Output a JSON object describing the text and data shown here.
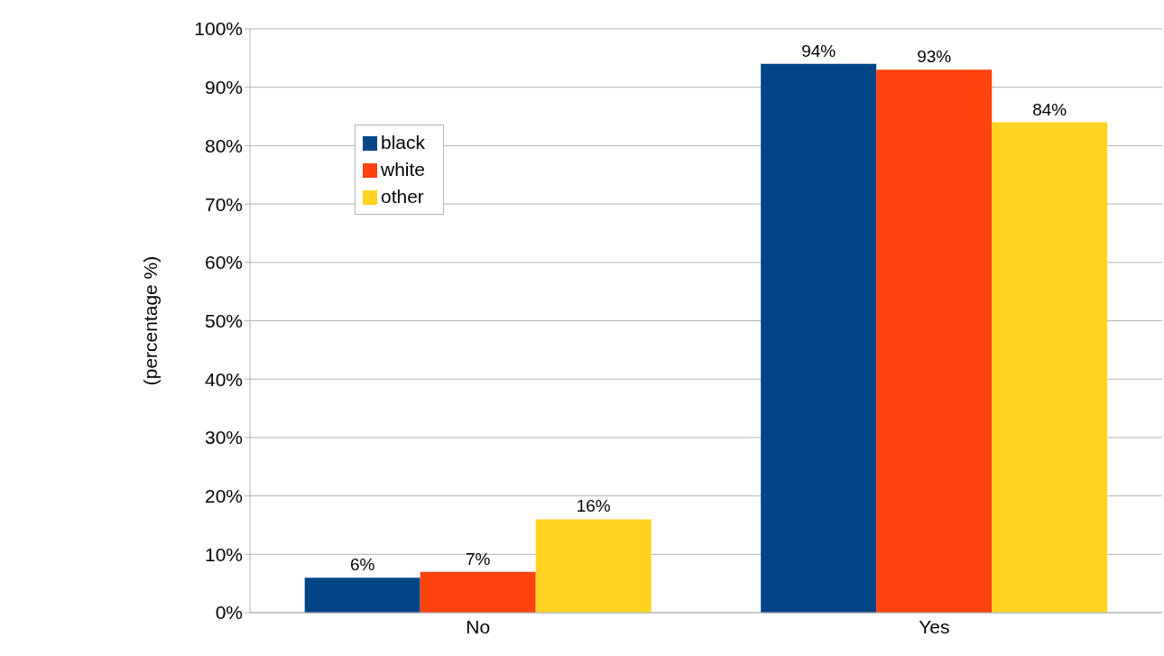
{
  "chart_data": {
    "type": "bar",
    "ylabel": "(percentage %)",
    "categories": [
      "No",
      "Yes"
    ],
    "series": [
      {
        "name": "black",
        "color": "#004586",
        "values": [
          6,
          94
        ],
        "value_labels": [
          "6%",
          "94%"
        ]
      },
      {
        "name": "white",
        "color": "#ff420e",
        "values": [
          7,
          93
        ],
        "value_labels": [
          "7%",
          "93%"
        ]
      },
      {
        "name": "other",
        "color": "#ffd320",
        "values": [
          16,
          84
        ],
        "value_labels": [
          "16%",
          "84%"
        ]
      }
    ],
    "ylim": [
      0,
      100
    ],
    "yticks": [
      {
        "value": 0,
        "label": "0%"
      },
      {
        "value": 10,
        "label": "10%"
      },
      {
        "value": 20,
        "label": "20%"
      },
      {
        "value": 30,
        "label": "30%"
      },
      {
        "value": 40,
        "label": "40%"
      },
      {
        "value": 50,
        "label": "50%"
      },
      {
        "value": 60,
        "label": "60%"
      },
      {
        "value": 70,
        "label": "70%"
      },
      {
        "value": 80,
        "label": "80%"
      },
      {
        "value": 90,
        "label": "90%"
      },
      {
        "value": 100,
        "label": "100%"
      }
    ],
    "grid": "y",
    "legend": "top left"
  }
}
